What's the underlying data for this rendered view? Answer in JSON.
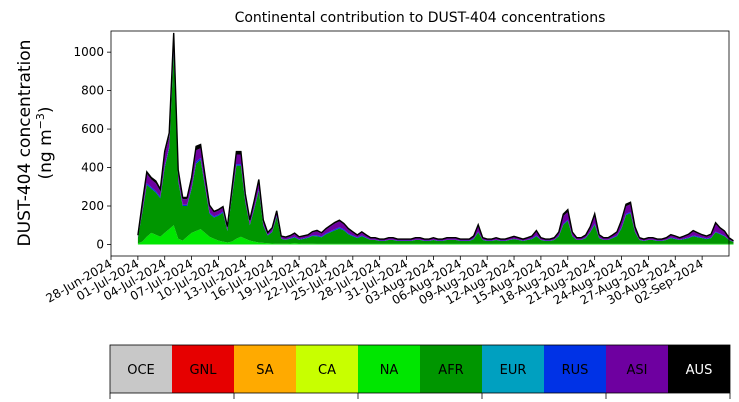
{
  "chart_data": {
    "type": "area",
    "title": "Continental contribution to DUST-404 concentrations",
    "ylabel_line1": "DUST-404 concentration",
    "ylabel_line2": "(ng m",
    "ylabel_sup": "−3",
    "ylabel_close": ")",
    "xlabel": "",
    "ylim": [
      -60,
      1110
    ],
    "yticks": [
      0,
      200,
      400,
      600,
      800,
      1000
    ],
    "x_start": "2024-06-28",
    "x_end": "2024-09-05",
    "xticks": [
      "28-Jun-2024",
      "01-Jul-2024",
      "04-Jul-2024",
      "07-Jul-2024",
      "10-Jul-2024",
      "13-Jul-2024",
      "16-Jul-2024",
      "19-Jul-2024",
      "22-Jul-2024",
      "25-Jul-2024",
      "28-Jul-2024",
      "31-Jul-2024",
      "03-Aug-2024",
      "06-Aug-2024",
      "09-Aug-2024",
      "12-Aug-2024",
      "15-Aug-2024",
      "18-Aug-2024",
      "21-Aug-2024",
      "24-Aug-2024",
      "27-Aug-2024",
      "30-Aug-2024",
      "02-Sep-2024"
    ],
    "data_start": "2024-07-01",
    "data_step_days": 0.5,
    "legend": [
      {
        "label": "OCE",
        "color": "#c8c8c8",
        "text_color": "#000000"
      },
      {
        "label": "GNL",
        "color": "#e60000",
        "text_color": "#000000"
      },
      {
        "label": "SA",
        "color": "#ffaa00",
        "text_color": "#000000"
      },
      {
        "label": "CA",
        "color": "#c8ff00",
        "text_color": "#000000"
      },
      {
        "label": "NA",
        "color": "#00e600",
        "text_color": "#000000"
      },
      {
        "label": "AFR",
        "color": "#009600",
        "text_color": "#000000"
      },
      {
        "label": "EUR",
        "color": "#00a0c0",
        "text_color": "#000000"
      },
      {
        "label": "RUS",
        "color": "#0032e6",
        "text_color": "#000000"
      },
      {
        "label": "ASI",
        "color": "#6e00a0",
        "text_color": "#000000"
      },
      {
        "label": "AUS",
        "color": "#000000",
        "text_color": "#ffffff"
      }
    ],
    "series": [
      {
        "name": "NA",
        "color": "#00e600",
        "values": [
          5,
          15,
          40,
          60,
          50,
          40,
          60,
          80,
          100,
          30,
          20,
          40,
          60,
          70,
          80,
          60,
          40,
          30,
          20,
          15,
          10,
          15,
          30,
          40,
          30,
          20,
          15,
          10,
          8,
          6,
          5,
          4,
          4,
          4,
          5,
          6,
          5,
          4,
          4,
          4,
          3,
          3,
          3,
          3,
          3,
          3,
          3,
          3,
          3,
          3,
          3,
          3,
          3,
          3,
          3,
          3,
          3,
          3,
          3,
          3,
          3,
          3,
          3,
          3,
          3,
          3,
          3,
          3,
          3,
          3,
          3,
          3,
          3,
          3,
          3,
          3,
          3,
          3,
          3,
          3,
          3,
          3,
          3,
          3,
          3,
          3,
          3,
          3,
          3,
          3,
          3,
          3,
          3,
          3,
          3,
          3,
          3,
          3,
          3,
          3,
          3,
          3,
          3,
          3,
          3,
          3,
          3,
          3,
          3,
          3,
          3,
          3,
          3,
          3,
          3,
          3,
          3,
          3,
          3,
          3,
          3,
          3,
          3,
          3,
          3,
          3,
          3,
          3,
          3,
          3,
          3,
          3,
          3,
          3
        ]
      },
      {
        "name": "AFR",
        "color": "#009600",
        "values": [
          30,
          150,
          270,
          230,
          220,
          200,
          340,
          420,
          900,
          300,
          180,
          160,
          230,
          350,
          360,
          240,
          120,
          110,
          130,
          150,
          60,
          230,
          380,
          370,
          190,
          80,
          170,
          270,
          90,
          40,
          60,
          140,
          25,
          20,
          25,
          30,
          20,
          25,
          30,
          40,
          40,
          35,
          50,
          60,
          70,
          80,
          70,
          50,
          40,
          30,
          40,
          30,
          20,
          20,
          15,
          15,
          20,
          20,
          15,
          15,
          15,
          15,
          20,
          20,
          15,
          15,
          20,
          15,
          15,
          20,
          20,
          20,
          15,
          15,
          15,
          25,
          60,
          20,
          15,
          15,
          20,
          15,
          15,
          20,
          25,
          20,
          15,
          20,
          25,
          40,
          20,
          15,
          15,
          20,
          40,
          100,
          120,
          40,
          20,
          20,
          30,
          60,
          100,
          30,
          20,
          20,
          30,
          40,
          80,
          150,
          160,
          60,
          20,
          15,
          20,
          20,
          15,
          15,
          20,
          30,
          25,
          20,
          25,
          30,
          40,
          35,
          30,
          25,
          30,
          60,
          50,
          40,
          20,
          10
        ]
      },
      {
        "name": "RUS",
        "color": "#0032e6",
        "values": [
          3,
          6,
          8,
          8,
          8,
          8,
          10,
          10,
          15,
          8,
          6,
          6,
          8,
          10,
          10,
          8,
          6,
          6,
          6,
          6,
          4,
          6,
          8,
          8,
          6,
          4,
          6,
          8,
          4,
          3,
          3,
          5,
          2,
          2,
          3,
          4,
          2,
          3,
          3,
          4,
          5,
          4,
          5,
          6,
          6,
          7,
          6,
          5,
          4,
          3,
          4,
          3,
          2,
          2,
          2,
          2,
          2,
          2,
          2,
          2,
          2,
          2,
          2,
          2,
          2,
          2,
          2,
          2,
          2,
          2,
          2,
          2,
          2,
          2,
          2,
          3,
          4,
          2,
          2,
          2,
          2,
          2,
          2,
          2,
          2,
          2,
          2,
          2,
          3,
          4,
          2,
          2,
          2,
          2,
          3,
          5,
          6,
          3,
          2,
          2,
          3,
          4,
          6,
          3,
          2,
          2,
          3,
          4,
          5,
          6,
          6,
          4,
          2,
          2,
          2,
          2,
          2,
          2,
          2,
          3,
          3,
          2,
          3,
          3,
          4,
          4,
          3,
          3,
          3,
          4,
          4,
          3,
          2,
          1
        ]
      },
      {
        "name": "ASI",
        "color": "#6e00a0",
        "values": [
          10,
          40,
          50,
          40,
          40,
          30,
          60,
          50,
          60,
          40,
          30,
          30,
          40,
          60,
          50,
          40,
          30,
          20,
          20,
          20,
          15,
          30,
          50,
          50,
          30,
          20,
          30,
          40,
          20,
          10,
          15,
          20,
          10,
          10,
          10,
          15,
          10,
          10,
          10,
          15,
          20,
          15,
          20,
          25,
          30,
          30,
          25,
          20,
          15,
          10,
          15,
          10,
          8,
          8,
          6,
          6,
          8,
          8,
          6,
          6,
          6,
          6,
          8,
          8,
          6,
          6,
          8,
          6,
          6,
          8,
          8,
          8,
          6,
          6,
          6,
          10,
          30,
          8,
          6,
          6,
          8,
          6,
          6,
          8,
          10,
          8,
          6,
          8,
          10,
          20,
          8,
          6,
          6,
          8,
          15,
          40,
          40,
          15,
          8,
          8,
          10,
          20,
          40,
          12,
          8,
          8,
          10,
          15,
          30,
          40,
          40,
          20,
          8,
          6,
          8,
          8,
          6,
          6,
          8,
          12,
          10,
          8,
          10,
          15,
          20,
          15,
          12,
          10,
          15,
          40,
          25,
          20,
          8,
          4
        ]
      },
      {
        "name": "AUS",
        "color": "#000000",
        "values": [
          0,
          5,
          10,
          10,
          12,
          10,
          15,
          20,
          25,
          10,
          8,
          8,
          10,
          20,
          20,
          12,
          8,
          6,
          6,
          6,
          4,
          8,
          15,
          15,
          8,
          5,
          8,
          10,
          5,
          3,
          4,
          6,
          3,
          3,
          3,
          4,
          3,
          3,
          3,
          4,
          5,
          4,
          5,
          5,
          6,
          6,
          5,
          5,
          4,
          3,
          4,
          3,
          2,
          2,
          2,
          2,
          2,
          2,
          2,
          2,
          2,
          2,
          2,
          2,
          2,
          2,
          2,
          2,
          2,
          2,
          2,
          2,
          2,
          2,
          2,
          3,
          5,
          2,
          2,
          2,
          2,
          2,
          2,
          2,
          2,
          2,
          2,
          2,
          3,
          5,
          2,
          2,
          2,
          2,
          4,
          10,
          12,
          4,
          2,
          2,
          3,
          5,
          10,
          3,
          2,
          2,
          3,
          4,
          8,
          10,
          10,
          5,
          2,
          2,
          2,
          2,
          2,
          2,
          2,
          3,
          3,
          2,
          3,
          3,
          5,
          4,
          3,
          3,
          3,
          6,
          5,
          4,
          2,
          1
        ]
      }
    ]
  }
}
